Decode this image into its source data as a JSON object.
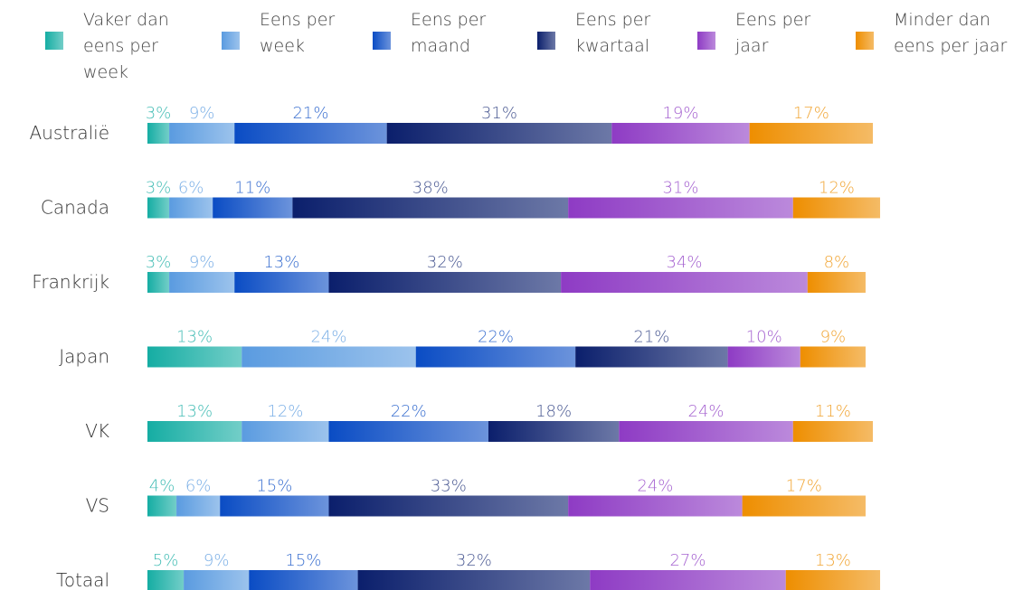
{
  "chart_data": {
    "type": "stacked-bar-horizontal",
    "categories": [
      "Australië",
      "Canada",
      "Frankrijk",
      "Japan",
      "VK",
      "VS",
      "Totaal"
    ],
    "xlim": [
      0,
      100
    ],
    "legend": "top",
    "series": [
      {
        "name": "Vaker dan eens per week",
        "color": "#15ada3",
        "values": [
          3,
          3,
          3,
          13,
          13,
          4,
          5
        ],
        "value_labels": [
          "3%",
          "3%",
          "3%",
          "13%",
          "13%",
          "4%",
          "5%"
        ]
      },
      {
        "name": "Eens per week",
        "color": "#5a9be0",
        "values": [
          9,
          6,
          9,
          24,
          12,
          6,
          9
        ],
        "value_labels": [
          "9%",
          "6%",
          "9%",
          "24%",
          "12%",
          "6%",
          "9%"
        ]
      },
      {
        "name": "Eens per maand",
        "color": "#0a4cc4",
        "values": [
          21,
          11,
          13,
          22,
          22,
          15,
          15
        ],
        "value_labels": [
          "21%",
          "11%",
          "13%",
          "22%",
          "22%",
          "15%",
          "15%"
        ]
      },
      {
        "name": "Eens per kwartaal",
        "color": "#0b1f6c",
        "values": [
          31,
          38,
          32,
          21,
          18,
          33,
          32
        ],
        "value_labels": [
          "31%",
          "38%",
          "32%",
          "21%",
          "18%",
          "33%",
          "32%"
        ]
      },
      {
        "name": "Eens per jaar",
        "color": "#8e3bc4",
        "values": [
          19,
          31,
          34,
          10,
          24,
          24,
          27
        ],
        "value_labels": [
          "19%",
          "31%",
          "34%",
          "10%",
          "24%",
          "24%",
          "27%"
        ]
      },
      {
        "name": "Minder dan eens per jaar",
        "color": "#ee8e00",
        "values": [
          17,
          12,
          8,
          9,
          11,
          17,
          13
        ],
        "value_labels": [
          "17%",
          "12%",
          "8%",
          "9%",
          "11%",
          "17%",
          "13%"
        ]
      }
    ]
  }
}
